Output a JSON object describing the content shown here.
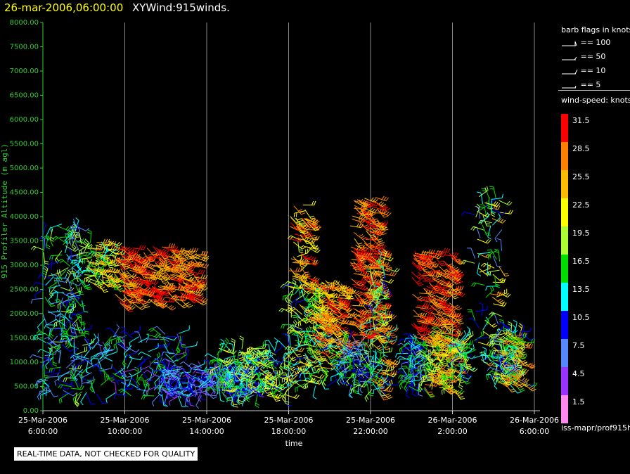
{
  "title": {
    "date": "26-mar-2006,06:00:00",
    "name": "XYWind:915winds."
  },
  "legend": {
    "barb_header": "barb flags in knots",
    "barbs": [
      {
        "label": "== 100",
        "kind": "pennant"
      },
      {
        "label": "== 50",
        "kind": "flag"
      },
      {
        "label": "== 10",
        "kind": "full"
      },
      {
        "label": "== 5",
        "kind": "half"
      }
    ],
    "speed_header": "wind-speed: knots",
    "speed_scale": [
      {
        "label": "31.5",
        "color": "#ff0000"
      },
      {
        "label": "28.5",
        "color": "#ff7f00"
      },
      {
        "label": "25.5",
        "color": "#ffbb00"
      },
      {
        "label": "22.5",
        "color": "#ffff00"
      },
      {
        "label": "19.5",
        "color": "#aaff33"
      },
      {
        "label": "16.5",
        "color": "#00dd00"
      },
      {
        "label": "13.5",
        "color": "#00ffff"
      },
      {
        "label": "10.5",
        "color": "#0000ff"
      },
      {
        "label": "7.5",
        "color": "#5588ff"
      },
      {
        "label": "4.5",
        "color": "#9933ff"
      },
      {
        "label": "1.5",
        "color": "#ff88ee"
      }
    ]
  },
  "source_label": "iss-mapr/prof915h",
  "quality_note": "REAL-TIME DATA, NOT CHECKED FOR QUALITY",
  "colors": {
    "axis": "#33cc33",
    "grid": "#888888",
    "frame": "#cccccc"
  },
  "chart_data": {
    "type": "wind-barb-time-height",
    "title": "XYWind:915winds.",
    "xlabel": "time",
    "ylabel": "915 Profiler Altitude (m agl)",
    "xlim_hours": [
      0,
      24
    ],
    "ylim": [
      0,
      8000
    ],
    "yticks": [
      {
        "value": 0,
        "label": "0.00"
      },
      {
        "value": 500,
        "label": "500.00"
      },
      {
        "value": 1000,
        "label": "1000.00"
      },
      {
        "value": 1500,
        "label": "1500.00"
      },
      {
        "value": 2000,
        "label": "2000.00"
      },
      {
        "value": 2500,
        "label": "2500.00"
      },
      {
        "value": 3000,
        "label": "3000.00"
      },
      {
        "value": 3500,
        "label": "3500.00"
      },
      {
        "value": 4000,
        "label": "4000.00"
      },
      {
        "value": 4500,
        "label": "4500.00"
      },
      {
        "value": 5000,
        "label": "5000.00"
      },
      {
        "value": 5500,
        "label": "5500.00"
      },
      {
        "value": 6000,
        "label": "6000.00"
      },
      {
        "value": 6500,
        "label": "6500.00"
      },
      {
        "value": 7000,
        "label": "7000.00"
      },
      {
        "value": 7500,
        "label": "7500.00"
      },
      {
        "value": 8000,
        "label": "8000.00"
      }
    ],
    "xticks": [
      {
        "hours": 0,
        "date": "25-Mar-2006",
        "time": "6:00:00"
      },
      {
        "hours": 4,
        "date": "25-Mar-2006",
        "time": "10:00:00"
      },
      {
        "hours": 8,
        "date": "25-Mar-2006",
        "time": "14:00:00"
      },
      {
        "hours": 12,
        "date": "25-Mar-2006",
        "time": "18:00:00"
      },
      {
        "hours": 16,
        "date": "25-Mar-2006",
        "time": "22:00:00"
      },
      {
        "hours": 20,
        "date": "26-Mar-2006",
        "time": "2:00:00"
      },
      {
        "hours": 24,
        "date": "26-Mar-2006",
        "time": "6:00:00"
      }
    ],
    "gridlines_hours": [
      4,
      8,
      12,
      16,
      20,
      24
    ],
    "clusters": [
      {
        "t": [
          0.0,
          2.0
        ],
        "z": [
          300,
          3900
        ],
        "speed": [
          6,
          20
        ],
        "count": 230
      },
      {
        "t": [
          2.0,
          3.5
        ],
        "z": [
          2600,
          3500
        ],
        "speed": [
          14,
          28
        ],
        "count": 90
      },
      {
        "t": [
          3.5,
          7.5
        ],
        "z": [
          2200,
          3400
        ],
        "speed": [
          24,
          33
        ],
        "count": 260
      },
      {
        "t": [
          2.0,
          7.0
        ],
        "z": [
          300,
          1600
        ],
        "speed": [
          5,
          18
        ],
        "count": 150
      },
      {
        "t": [
          5.5,
          10.5
        ],
        "z": [
          300,
          900
        ],
        "speed": [
          4,
          14
        ],
        "count": 240
      },
      {
        "t": [
          8.5,
          12.0
        ],
        "z": [
          300,
          1300
        ],
        "speed": [
          10,
          24
        ],
        "count": 230
      },
      {
        "t": [
          12.0,
          14.0
        ],
        "z": [
          500,
          2600
        ],
        "speed": [
          10,
          26
        ],
        "count": 200
      },
      {
        "t": [
          12.0,
          13.0
        ],
        "z": [
          2500,
          4300
        ],
        "speed": [
          20,
          33
        ],
        "count": 70
      },
      {
        "t": [
          13.0,
          14.8
        ],
        "z": [
          1200,
          2700
        ],
        "speed": [
          22,
          33
        ],
        "count": 140
      },
      {
        "t": [
          14.5,
          16.0
        ],
        "z": [
          500,
          1400
        ],
        "speed": [
          6,
          20
        ],
        "count": 110
      },
      {
        "t": [
          15.0,
          16.4
        ],
        "z": [
          1500,
          4400
        ],
        "speed": [
          25,
          33
        ],
        "count": 200
      },
      {
        "t": [
          16.0,
          16.8
        ],
        "z": [
          400,
          3200
        ],
        "speed": [
          10,
          30
        ],
        "count": 120
      },
      {
        "t": [
          17.8,
          18.6
        ],
        "z": [
          500,
          1500
        ],
        "speed": [
          6,
          18
        ],
        "count": 90
      },
      {
        "t": [
          18.0,
          20.0
        ],
        "z": [
          1500,
          3300
        ],
        "speed": [
          26,
          33
        ],
        "count": 170
      },
      {
        "t": [
          18.6,
          20.2
        ],
        "z": [
          400,
          1600
        ],
        "speed": [
          16,
          30
        ],
        "count": 150
      },
      {
        "t": [
          20.2,
          20.6
        ],
        "z": [
          700,
          1500
        ],
        "speed": [
          10,
          22
        ],
        "count": 40
      },
      {
        "t": [
          21.0,
          22.5
        ],
        "z": [
          1000,
          4500
        ],
        "speed": [
          6,
          28
        ],
        "count": 90
      },
      {
        "t": [
          22.0,
          23.5
        ],
        "z": [
          500,
          1700
        ],
        "speed": [
          8,
          30
        ],
        "count": 170
      }
    ]
  }
}
